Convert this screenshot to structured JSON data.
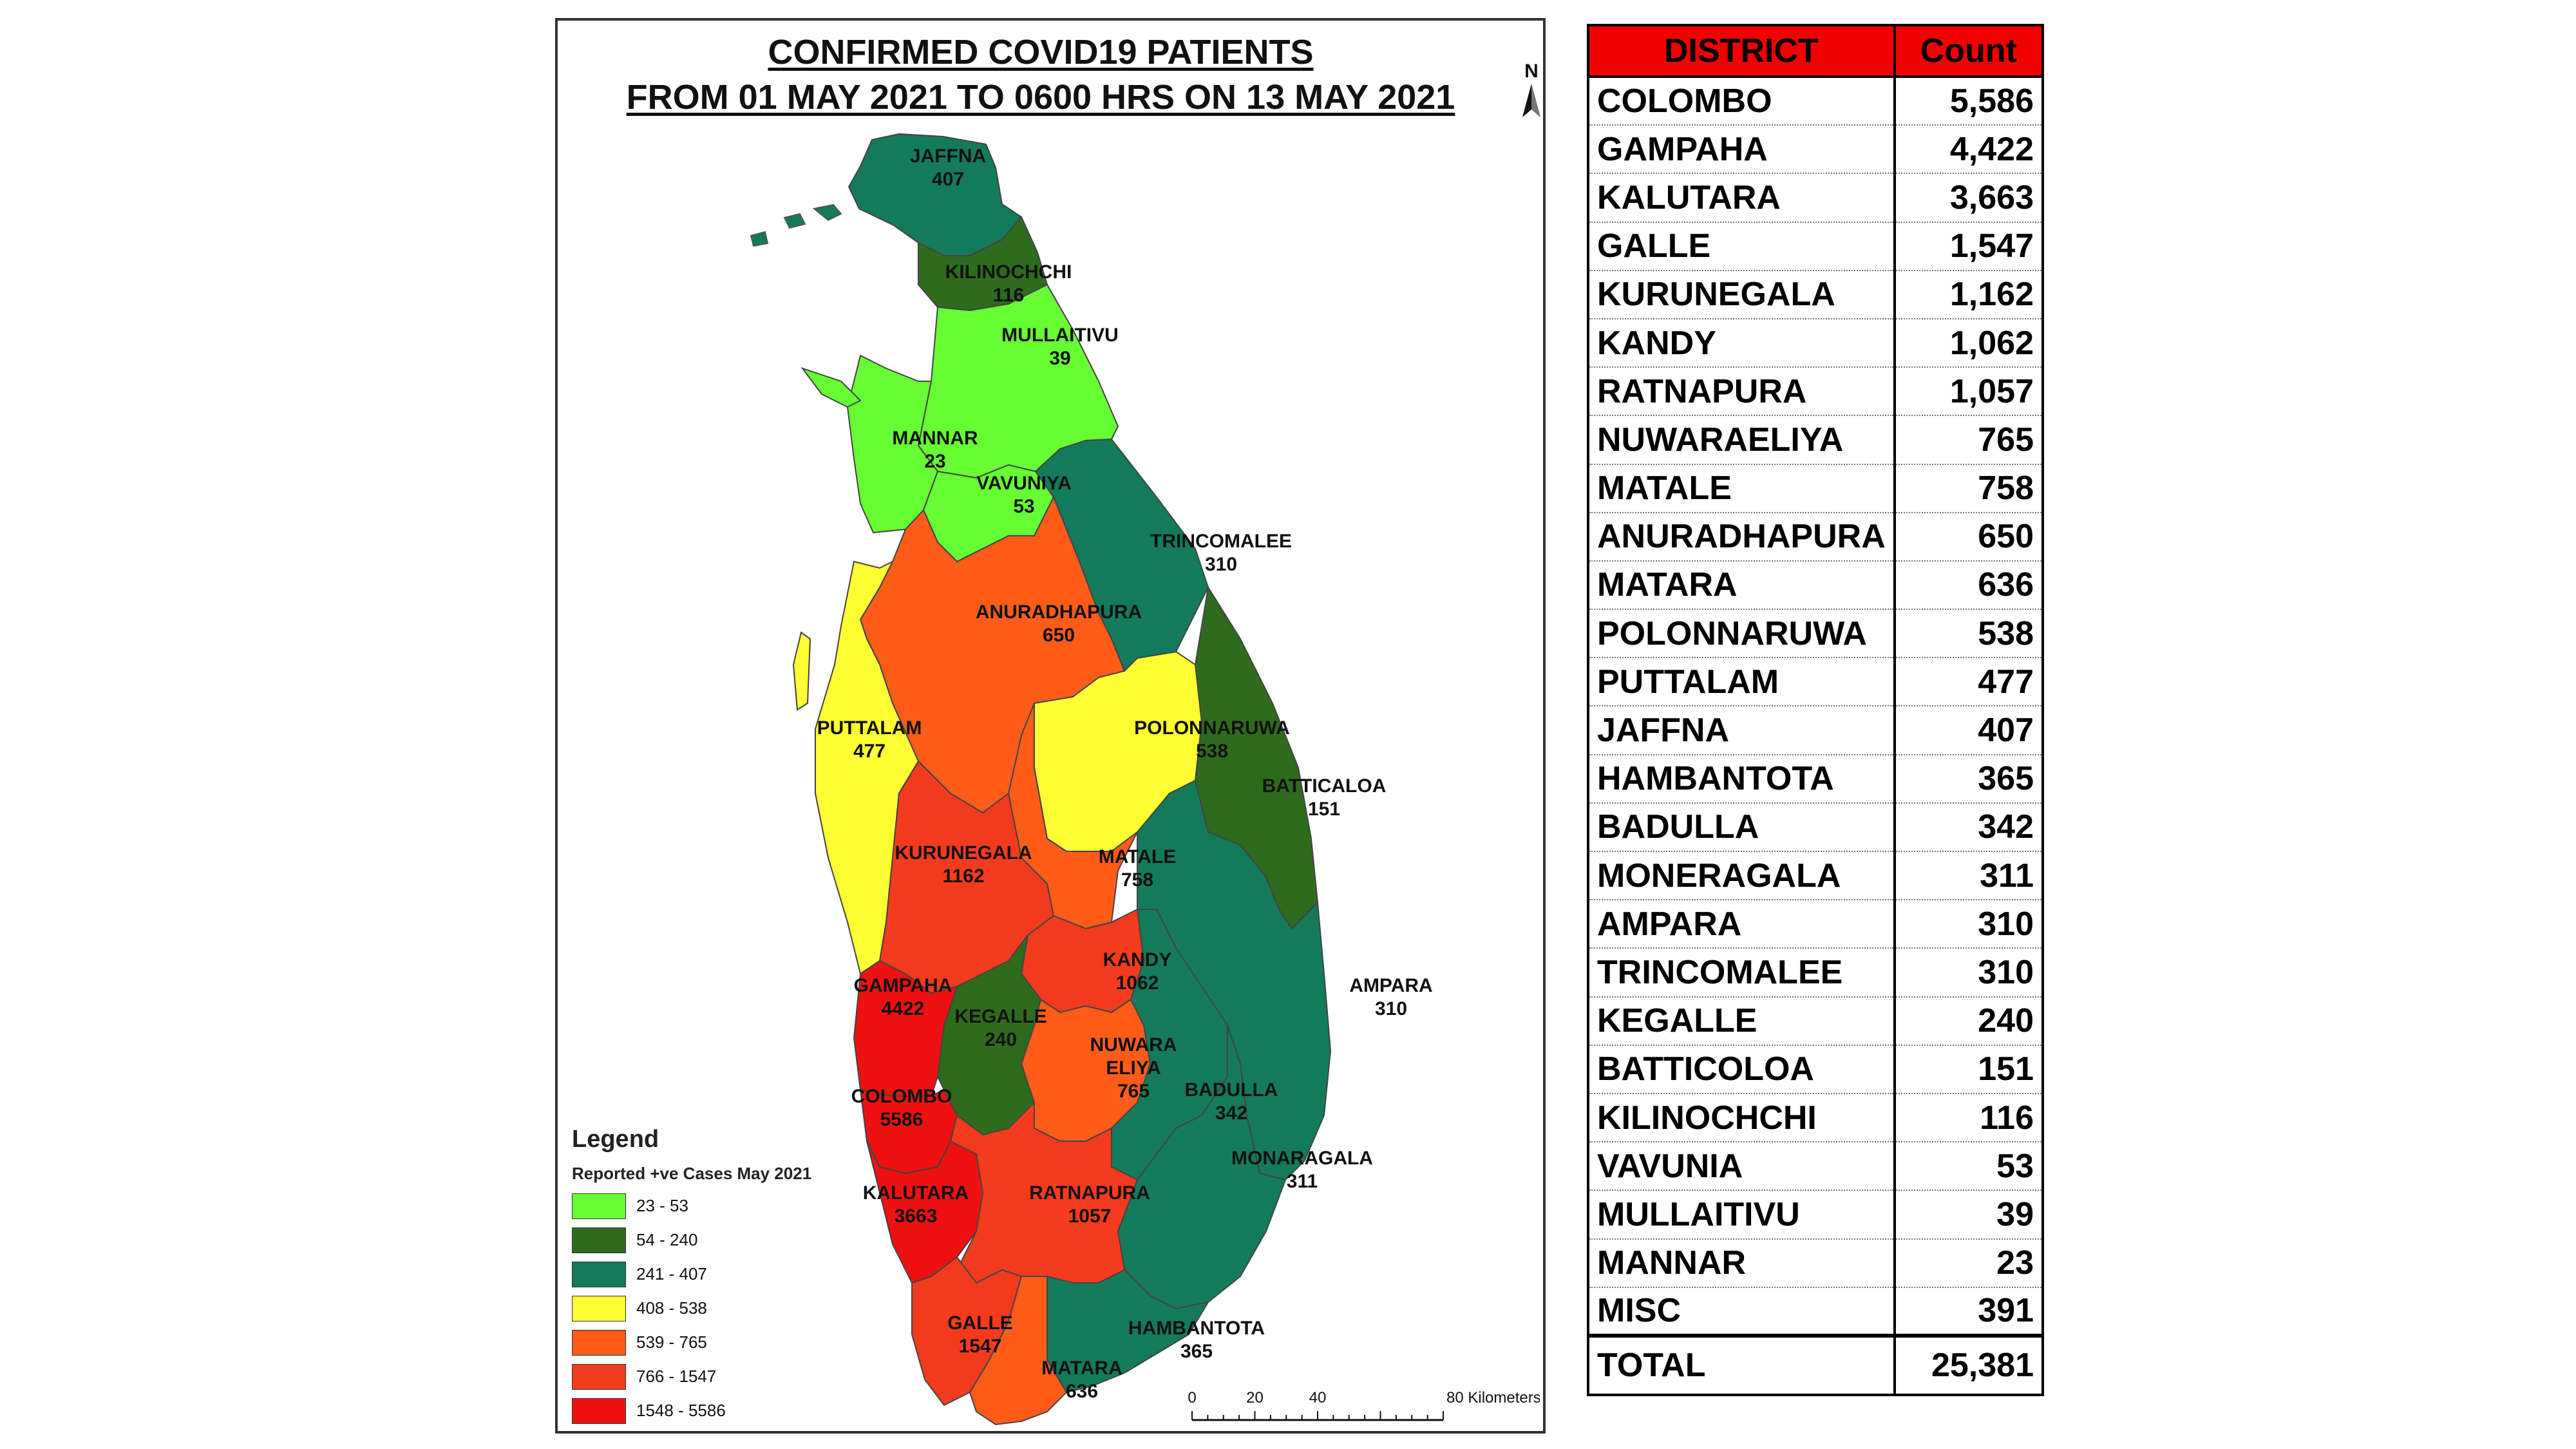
{
  "map": {
    "title_line1": "CONFIRMED COVID19 PATIENTS",
    "title_line2": "FROM 01 MAY 2021 TO 0600 HRS ON 13 MAY 2021",
    "north_label": "N",
    "districts": [
      {
        "name": "JAFFNA",
        "value": "407",
        "color": "#137a5a"
      },
      {
        "name": "KILINOCHCHI",
        "value": "116",
        "color": "#2e6b1d"
      },
      {
        "name": "MULLAITIVU",
        "value": "39",
        "color": "#66ff33"
      },
      {
        "name": "MANNAR",
        "value": "23",
        "color": "#66ff33"
      },
      {
        "name": "VAVUNIYA",
        "value": "53",
        "color": "#66ff33"
      },
      {
        "name": "TRINCOMALEE",
        "value": "310",
        "color": "#137a5a"
      },
      {
        "name": "ANURADHAPURA",
        "value": "650",
        "color": "#ff5c1a"
      },
      {
        "name": "PUTTALAM",
        "value": "477",
        "color": "#ffff33"
      },
      {
        "name": "POLONNARUWA",
        "value": "538",
        "color": "#ffff33"
      },
      {
        "name": "BATTICALOA",
        "value": "151",
        "color": "#2e6b1d"
      },
      {
        "name": "KURUNEGALA",
        "value": "1162",
        "color": "#f43b1d"
      },
      {
        "name": "MATALE",
        "value": "758",
        "color": "#ff5c1a"
      },
      {
        "name": "KANDY",
        "value": "1062",
        "color": "#f43b1d"
      },
      {
        "name": "GAMPAHA",
        "value": "4422",
        "color": "#ee1111"
      },
      {
        "name": "KEGALLE",
        "value": "240",
        "color": "#2e6b1d"
      },
      {
        "name": "AMPARA",
        "value": "310",
        "color": "#137a5a"
      },
      {
        "name": "NUWARA",
        "value": "",
        "color": "#ff5c1a"
      },
      {
        "name": "COLOMBO",
        "value": "5586",
        "color": "#ee1111"
      },
      {
        "name": "BADULLA",
        "value": "342",
        "color": "#137a5a"
      },
      {
        "name": "MONARAGALA",
        "value": "311",
        "color": "#137a5a"
      },
      {
        "name": "KALUTARA",
        "value": "3663",
        "color": "#ee1111"
      },
      {
        "name": "RATNAPURA",
        "value": "1057",
        "color": "#f43b1d"
      },
      {
        "name": "GALLE",
        "value": "1547",
        "color": "#f43b1d"
      },
      {
        "name": "HAMBANTOTA",
        "value": "365",
        "color": "#137a5a"
      },
      {
        "name": "MATARA",
        "value": "636",
        "color": "#ff5c1a"
      }
    ],
    "nuwara_line2": "ELIYA",
    "nuwara_value": "765",
    "legend": {
      "title": "Legend",
      "subtitle": "Reported +ve Cases May 2021",
      "items": [
        {
          "label": "23 - 53",
          "color": "#66ff33"
        },
        {
          "label": "54 - 240",
          "color": "#2e6b1d"
        },
        {
          "label": "241 - 407",
          "color": "#137a5a"
        },
        {
          "label": "408 - 538",
          "color": "#ffff33"
        },
        {
          "label": "539 - 765",
          "color": "#ff5c1a"
        },
        {
          "label": "766 - 1547",
          "color": "#f43b1d"
        },
        {
          "label": "1548 - 5586",
          "color": "#ee1111"
        }
      ]
    },
    "scale": {
      "ticks": [
        "0",
        "20",
        "40",
        "80 Kilometers"
      ]
    }
  },
  "table": {
    "header_district": "DISTRICT",
    "header_count": "Count",
    "rows": [
      {
        "district": "COLOMBO",
        "count": "5,586"
      },
      {
        "district": "GAMPAHA",
        "count": "4,422"
      },
      {
        "district": "KALUTARA",
        "count": "3,663"
      },
      {
        "district": "GALLE",
        "count": "1,547"
      },
      {
        "district": "KURUNEGALA",
        "count": "1,162"
      },
      {
        "district": "KANDY",
        "count": "1,062"
      },
      {
        "district": "RATNAPURA",
        "count": "1,057"
      },
      {
        "district": "NUWARAELIYA",
        "count": "765"
      },
      {
        "district": "MATALE",
        "count": "758"
      },
      {
        "district": "ANURADHAPURA",
        "count": "650"
      },
      {
        "district": "MATARA",
        "count": "636"
      },
      {
        "district": "POLONNARUWA",
        "count": "538"
      },
      {
        "district": "PUTTALAM",
        "count": "477"
      },
      {
        "district": "JAFFNA",
        "count": "407"
      },
      {
        "district": "HAMBANTOTA",
        "count": "365"
      },
      {
        "district": "BADULLA",
        "count": "342"
      },
      {
        "district": "MONERAGALA",
        "count": "311"
      },
      {
        "district": "AMPARA",
        "count": "310"
      },
      {
        "district": "TRINCOMALEE",
        "count": "310"
      },
      {
        "district": "KEGALLE",
        "count": "240"
      },
      {
        "district": "BATTICOLOA",
        "count": "151"
      },
      {
        "district": "KILINOCHCHI",
        "count": "116"
      },
      {
        "district": "VAVUNIA",
        "count": "53"
      },
      {
        "district": "MULLAITIVU",
        "count": "39"
      },
      {
        "district": "MANNAR",
        "count": "23"
      },
      {
        "district": "MISC",
        "count": "391"
      }
    ],
    "total_label": "TOTAL",
    "total_count": "25,381"
  }
}
